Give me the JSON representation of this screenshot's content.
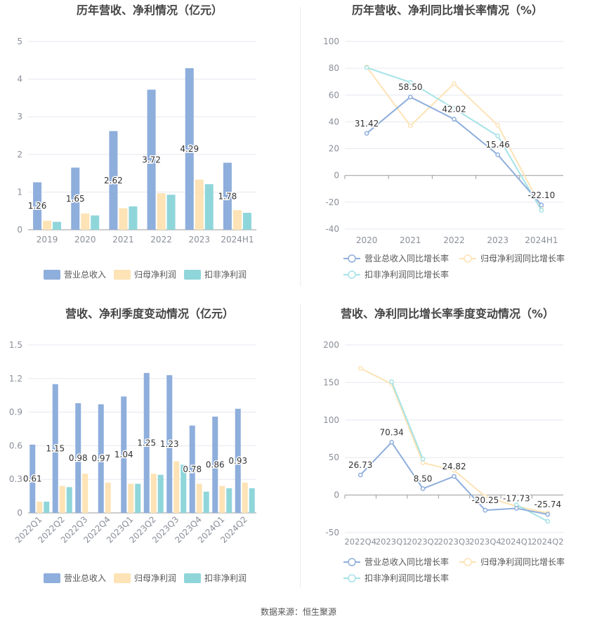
{
  "colors": {
    "revenue": "#8eaedc",
    "net_profit": "#fde3b5",
    "deducted_profit": "#8fd6da",
    "revenue_line": "#8eaedc",
    "net_profit_line": "#fde3b5",
    "deducted_profit_line": "#a6e3e6",
    "grid": "#e6e8f0",
    "axis_text": "#8a8f99",
    "title": "#444444",
    "label": "#333333"
  },
  "footer": "数据来源：恒生聚源",
  "chart_data": [
    {
      "type": "bar",
      "title": "历年营收、净利情况（亿元）",
      "categories": [
        "2019",
        "2020",
        "2021",
        "2022",
        "2023",
        "2024H1"
      ],
      "ylim": [
        0,
        5
      ],
      "yticks": [
        "0",
        "1",
        "2",
        "3",
        "4",
        "5"
      ],
      "grid": true,
      "legend_position": "bottom",
      "series": [
        {
          "name": "营业总收入",
          "values": [
            1.26,
            1.65,
            2.62,
            3.72,
            4.29,
            1.78
          ],
          "labels": [
            "1.26",
            "1.65",
            "2.62",
            "3.72",
            "4.29",
            "1.78"
          ]
        },
        {
          "name": "归母净利润",
          "values": [
            0.24,
            0.43,
            0.57,
            0.97,
            1.33,
            0.52
          ]
        },
        {
          "name": "扣非净利润",
          "values": [
            0.21,
            0.38,
            0.62,
            0.93,
            1.21,
            0.45
          ]
        }
      ]
    },
    {
      "type": "line",
      "title": "历年营收、净利同比增长率情况（%）",
      "categories": [
        "2020",
        "2021",
        "2022",
        "2023",
        "2024H1"
      ],
      "ylim": [
        -40,
        100
      ],
      "yticks": [
        "-40",
        "-20",
        "0",
        "20",
        "40",
        "60",
        "80",
        "100"
      ],
      "grid": true,
      "legend_position": "bottom",
      "series": [
        {
          "name": "营业总收入同比增长率",
          "values": [
            31.42,
            58.5,
            42.02,
            15.46,
            -22.1
          ],
          "labels": [
            "31.42",
            "58.50",
            "42.02",
            "15.46",
            "-22.10"
          ]
        },
        {
          "name": "归母净利润同比增长率",
          "values": [
            81.0,
            37.0,
            68.5,
            37.5,
            -24.0
          ]
        },
        {
          "name": "扣非净利润同比增长率",
          "values": [
            80.5,
            69.5,
            50.0,
            29.5,
            -26.0
          ]
        }
      ]
    },
    {
      "type": "bar",
      "title": "营收、净利季度变动情况（亿元）",
      "categories": [
        "2022Q1",
        "2022Q2",
        "2022Q3",
        "2022Q4",
        "2023Q1",
        "2023Q2",
        "2023Q3",
        "2023Q4",
        "2024Q1",
        "2024Q2"
      ],
      "ylim": [
        0,
        1.5
      ],
      "yticks": [
        "0",
        "0.3",
        "0.6",
        "0.9",
        "1.2",
        "1.5"
      ],
      "grid": true,
      "legend_position": "bottom",
      "series": [
        {
          "name": "营业总收入",
          "values": [
            0.61,
            1.15,
            0.98,
            0.97,
            1.04,
            1.25,
            1.23,
            0.78,
            0.86,
            0.93
          ],
          "labels": [
            "0.61",
            "1.15",
            "0.98",
            "0.97",
            "1.04",
            "1.25",
            "1.23",
            "0.78",
            "0.86",
            "0.93"
          ]
        },
        {
          "name": "归母净利润",
          "values": [
            0.1,
            0.24,
            0.35,
            0.27,
            0.26,
            0.35,
            0.46,
            0.26,
            0.24,
            0.27
          ]
        },
        {
          "name": "扣非净利润",
          "values": [
            0.1,
            0.23,
            0.0,
            0.0,
            0.26,
            0.34,
            0.43,
            0.19,
            0.22,
            0.22
          ]
        }
      ]
    },
    {
      "type": "line",
      "title": "营收、净利同比增长率季度变动情况（%）",
      "categories": [
        "2022Q4",
        "2023Q1",
        "2023Q2",
        "2023Q3",
        "2023Q4",
        "2024Q1",
        "2024Q2"
      ],
      "ylim": [
        -50,
        200
      ],
      "yticks": [
        "-50",
        "0",
        "50",
        "100",
        "150",
        "200"
      ],
      "grid": true,
      "legend_position": "bottom",
      "series": [
        {
          "name": "营业总收入同比增长率",
          "values": [
            26.73,
            70.34,
            8.5,
            24.82,
            -20.25,
            -17.73,
            -25.74
          ],
          "labels": [
            "26.73",
            "70.34",
            "8.50",
            "24.82",
            "-20.25",
            "-17.73",
            "-25.74"
          ]
        },
        {
          "name": "归母净利润同比增长率",
          "values": [
            169.0,
            148.0,
            43.0,
            33.0,
            -2.0,
            -15.0,
            -24.0
          ]
        },
        {
          "name": "扣非净利润同比增长率",
          "values": [
            null,
            151.0,
            48.0,
            null,
            null,
            -13.0,
            -35.0
          ]
        }
      ]
    }
  ]
}
